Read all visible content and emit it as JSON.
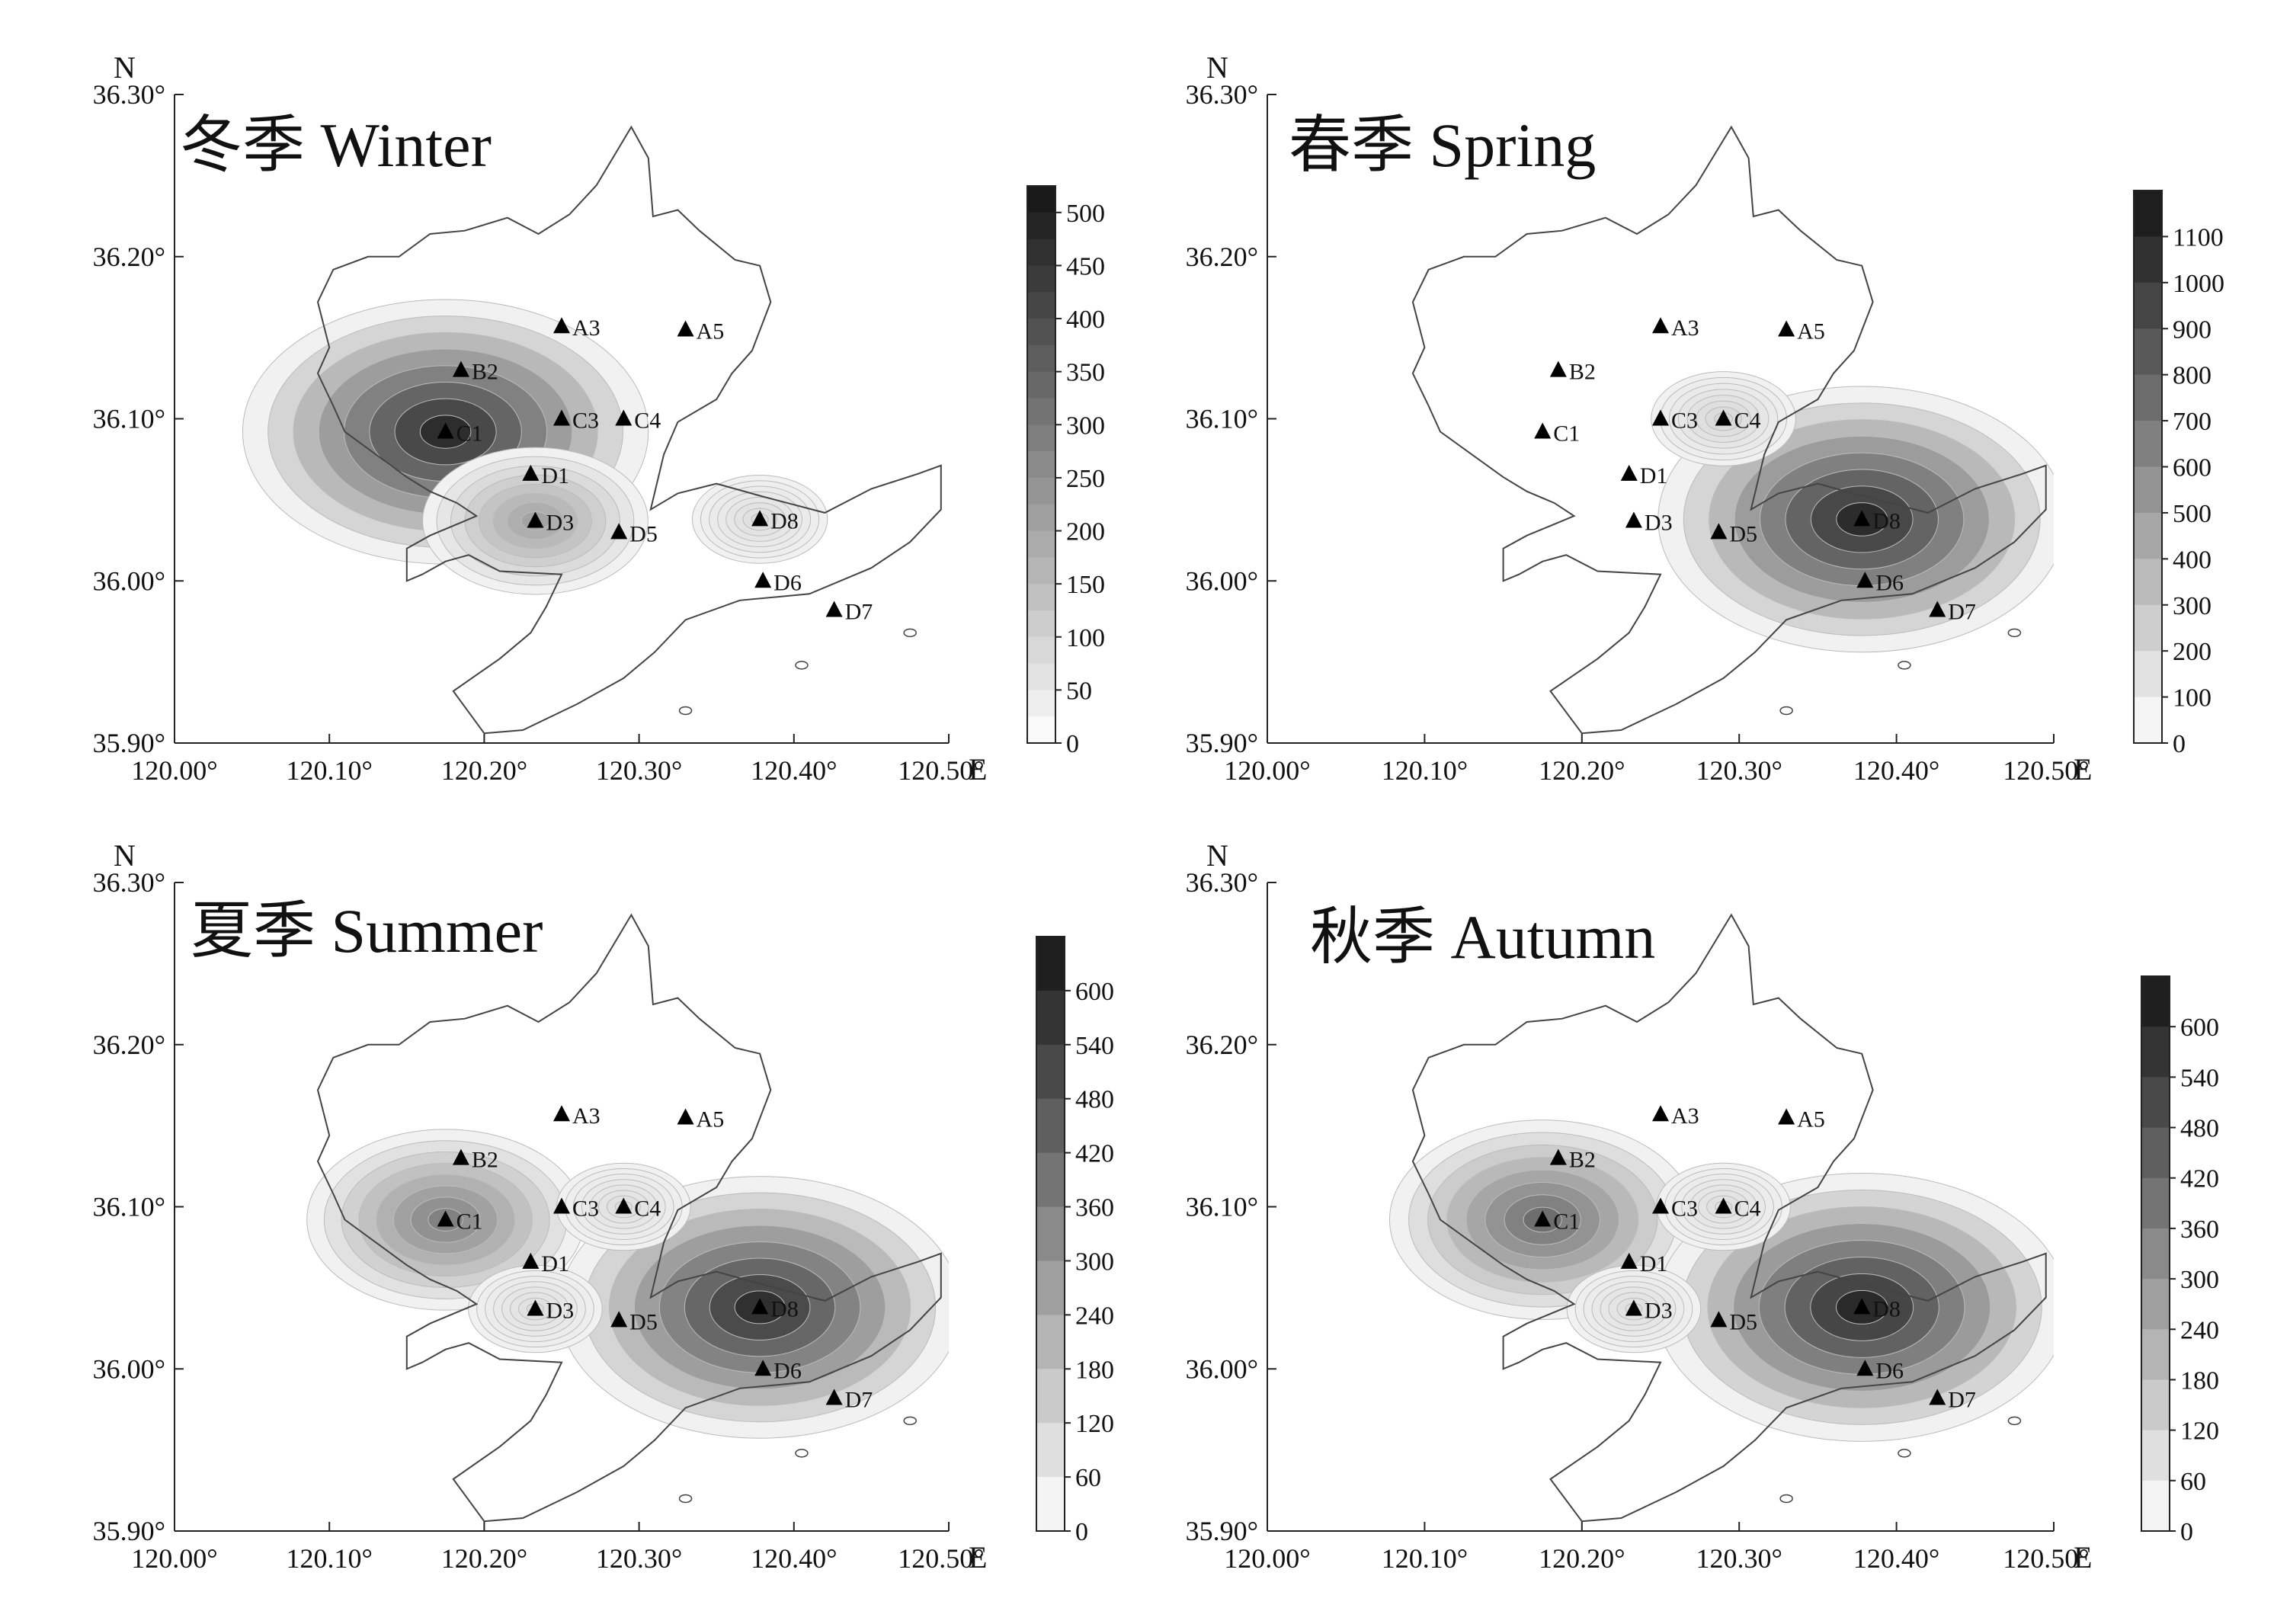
{
  "axis": {
    "north_label": "N",
    "east_label": "E",
    "lat_ticks": [
      "36.30°",
      "36.20°",
      "36.10°",
      "36.00°",
      "35.90°"
    ],
    "lon_ticks": [
      "120.00°",
      "120.10°",
      "120.20°",
      "120.30°",
      "120.40°",
      "120.50°"
    ],
    "lat_range": [
      35.9,
      36.3
    ],
    "lon_range": [
      120.0,
      120.5
    ]
  },
  "stations": [
    {
      "id": "A3",
      "lon": 120.25,
      "lat": 36.157
    },
    {
      "id": "A5",
      "lon": 120.33,
      "lat": 36.155
    },
    {
      "id": "B2",
      "lon": 120.185,
      "lat": 36.13
    },
    {
      "id": "C3",
      "lon": 120.25,
      "lat": 36.1
    },
    {
      "id": "C4",
      "lon": 120.29,
      "lat": 36.1
    },
    {
      "id": "C1",
      "lon": 120.175,
      "lat": 36.092
    },
    {
      "id": "D1",
      "lon": 120.23,
      "lat": 36.066
    },
    {
      "id": "D3",
      "lon": 120.233,
      "lat": 36.037
    },
    {
      "id": "D5",
      "lon": 120.287,
      "lat": 36.03
    },
    {
      "id": "D8",
      "lon": 120.378,
      "lat": 36.038
    },
    {
      "id": "D6",
      "lon": 120.38,
      "lat": 36.0
    },
    {
      "id": "D7",
      "lon": 120.426,
      "lat": 35.982
    }
  ],
  "panels": [
    {
      "id": "winter",
      "title": "冬季 Winter",
      "colorbar": {
        "min": 0,
        "max": 525,
        "ticks": [
          "500",
          "450",
          "400",
          "350",
          "300",
          "250",
          "200",
          "150",
          "100",
          "50",
          "0"
        ],
        "levels": 21
      },
      "hotspots": [
        {
          "station": "C1",
          "value": 500
        },
        {
          "station": "D3",
          "value": 200
        },
        {
          "station": "D8",
          "value": 50
        }
      ]
    },
    {
      "id": "spring",
      "title": "春季 Spring",
      "colorbar": {
        "min": 0,
        "max": 1200,
        "ticks": [
          "1100",
          "1000",
          "900",
          "800",
          "700",
          "600",
          "500",
          "400",
          "300",
          "200",
          "100",
          "0"
        ],
        "levels": 12
      },
      "hotspots": [
        {
          "station": "D8",
          "value": 1150
        },
        {
          "station": "C4",
          "value": 150
        }
      ]
    },
    {
      "id": "summer",
      "title": "夏季 Summer",
      "colorbar": {
        "min": 0,
        "max": 660,
        "ticks": [
          "600",
          "540",
          "480",
          "420",
          "360",
          "300",
          "240",
          "180",
          "120",
          "60",
          "0"
        ],
        "levels": 11
      },
      "hotspots": [
        {
          "station": "C1",
          "value": 360
        },
        {
          "station": "D8",
          "value": 620
        },
        {
          "station": "C4",
          "value": 60
        },
        {
          "station": "D3",
          "value": 60
        }
      ]
    },
    {
      "id": "autumn",
      "title": "秋季 Autumn",
      "colorbar": {
        "min": 0,
        "max": 660,
        "ticks": [
          "600",
          "540",
          "480",
          "420",
          "360",
          "300",
          "240",
          "180",
          "120",
          "60",
          "0"
        ],
        "levels": 11
      },
      "hotspots": [
        {
          "station": "C1",
          "value": 420
        },
        {
          "station": "D8",
          "value": 640
        },
        {
          "station": "C4",
          "value": 60
        },
        {
          "station": "D3",
          "value": 60
        }
      ]
    }
  ]
}
